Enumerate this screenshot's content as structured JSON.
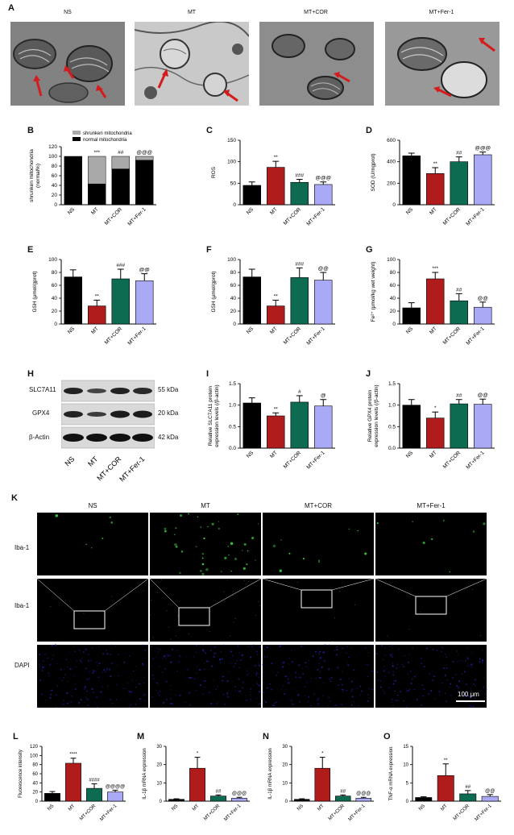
{
  "panel_letters": [
    "A",
    "B",
    "C",
    "D",
    "E",
    "F",
    "G",
    "H",
    "I",
    "J",
    "K",
    "L",
    "M",
    "N",
    "O"
  ],
  "em_labels": [
    "NS",
    "MT",
    "MT+COR",
    "MT+Fer-1"
  ],
  "groups": [
    "NS",
    "MT",
    "MT+COR",
    "MT+Fer-1"
  ],
  "colors": {
    "NS": "#000000",
    "MT": "#b01c1c",
    "MT+COR": "#0c6b50",
    "MT+Fer-1": "#a9a9f5",
    "shrunken": "#a9a9a9",
    "normal": "#000000",
    "iba": "#3ec33e",
    "dapi": "#2a2ad8"
  },
  "blot": {
    "proteins": [
      "SLC7A11",
      "GPX4",
      "β-Actin"
    ],
    "sizes": [
      "55 kDa",
      "20 kDa",
      "42 kDa"
    ],
    "lanes": [
      "NS",
      "MT",
      "MT+COR",
      "MT+Fer-1"
    ]
  },
  "fluor": {
    "columns": [
      "NS",
      "MT",
      "MT+COR",
      "MT+Fer-1"
    ],
    "rows": [
      "Iba-1",
      "Iba-1",
      "DAPI"
    ],
    "scale_bar": "100 μm"
  },
  "chart_data": [
    {
      "id": "B",
      "type": "bar",
      "stacked": true,
      "categories": [
        "NS",
        "MT",
        "MT+COR",
        "MT+Fer-1"
      ],
      "series": [
        {
          "name": "normal mitochondria",
          "values": [
            100,
            43,
            74,
            92
          ]
        },
        {
          "name": "shrunken mitochondria",
          "values": [
            0,
            57,
            26,
            8
          ]
        }
      ],
      "ylabel": "shrunken mitochondria (normal%)",
      "ylim": [
        0,
        120
      ],
      "yticks": [
        0,
        20,
        40,
        60,
        80,
        100,
        120
      ],
      "sig": [
        "",
        "***",
        "##",
        "@@@"
      ],
      "legend": "top"
    },
    {
      "id": "C",
      "type": "bar",
      "categories": [
        "NS",
        "MT",
        "MT+COR",
        "MT+Fer-1"
      ],
      "values": [
        45,
        87,
        52,
        47
      ],
      "errors": [
        8,
        14,
        7,
        6
      ],
      "ylabel": "ROS",
      "ylim": [
        0,
        150
      ],
      "yticks": [
        0,
        50,
        100,
        150
      ],
      "sig": [
        "",
        "**",
        "###",
        "@@@"
      ]
    },
    {
      "id": "D",
      "type": "bar",
      "categories": [
        "NS",
        "MT",
        "MT+COR",
        "MT+Fer-1"
      ],
      "values": [
        455,
        290,
        400,
        465
      ],
      "errors": [
        25,
        55,
        45,
        25
      ],
      "ylabel": "SOD (U/mgprot)",
      "ylim": [
        0,
        600
      ],
      "yticks": [
        0,
        200,
        400,
        600
      ],
      "sig": [
        "",
        "**",
        "##",
        "@@@"
      ]
    },
    {
      "id": "E",
      "type": "bar",
      "categories": [
        "NS",
        "MT",
        "MT+COR",
        "MT+Fer-1"
      ],
      "values": [
        73,
        28,
        70,
        67
      ],
      "errors": [
        11,
        9,
        15,
        11
      ],
      "ylabel": "GSH (μmol/gprot)",
      "ylim": [
        0,
        100
      ],
      "yticks": [
        0,
        20,
        40,
        60,
        80,
        100
      ],
      "sig": [
        "",
        "**",
        "###",
        "@@"
      ]
    },
    {
      "id": "F",
      "type": "bar",
      "categories": [
        "NS",
        "MT",
        "MT+COR",
        "MT+Fer-1"
      ],
      "values": [
        73,
        28,
        72,
        68
      ],
      "errors": [
        12,
        9,
        15,
        12
      ],
      "ylabel": "GSH (μmol/gprot)",
      "ylim": [
        0,
        100
      ],
      "yticks": [
        0,
        20,
        40,
        60,
        80,
        100
      ],
      "sig": [
        "",
        "**",
        "###",
        "@@"
      ]
    },
    {
      "id": "G",
      "type": "bar",
      "categories": [
        "NS",
        "MT",
        "MT+COR",
        "MT+Fer-1"
      ],
      "values": [
        25,
        70,
        36,
        26
      ],
      "errors": [
        8,
        10,
        11,
        8
      ],
      "ylabel": "Fe²⁺ (μmol/kg wet weight)",
      "ylim": [
        0,
        100
      ],
      "yticks": [
        0,
        20,
        40,
        60,
        80,
        100
      ],
      "sig": [
        "",
        "***",
        "##",
        "@@"
      ]
    },
    {
      "id": "I",
      "type": "bar",
      "categories": [
        "NS",
        "MT",
        "MT+COR",
        "MT+Fer-1"
      ],
      "values": [
        1.05,
        0.75,
        1.07,
        0.98
      ],
      "errors": [
        0.12,
        0.07,
        0.15,
        0.15
      ],
      "ylabel": "Relative SLC7A11 protein expression levels (/β-actin)",
      "ylim": [
        0,
        1.5
      ],
      "yticks": [
        0.0,
        0.5,
        1.0,
        1.5
      ],
      "sig": [
        "",
        "**",
        "#",
        "@"
      ]
    },
    {
      "id": "J",
      "type": "bar",
      "categories": [
        "NS",
        "MT",
        "MT+COR",
        "MT+Fer-1"
      ],
      "values": [
        1.0,
        0.7,
        1.03,
        1.02
      ],
      "errors": [
        0.13,
        0.14,
        0.1,
        0.12
      ],
      "ylabel": "Relative GPX4 protein expression levels (/β-actin)",
      "ylim": [
        0,
        1.5
      ],
      "yticks": [
        0.0,
        0.5,
        1.0,
        1.5
      ],
      "sig": [
        "",
        "*",
        "##",
        "@@"
      ]
    },
    {
      "id": "L",
      "type": "bar",
      "categories": [
        "NS",
        "MT",
        "MT+COR",
        "MT+Fer-1"
      ],
      "values": [
        17,
        83,
        28,
        20
      ],
      "errors": [
        4,
        11,
        10,
        4
      ],
      "ylabel": "Fluorescence intensity",
      "ylim": [
        0,
        120
      ],
      "yticks": [
        0,
        20,
        40,
        60,
        80,
        100,
        120
      ],
      "sig": [
        "",
        "****",
        "####",
        "@@@@"
      ]
    },
    {
      "id": "M",
      "type": "bar",
      "categories": [
        "NS",
        "MT",
        "MT+COR",
        "MT+Fer-1"
      ],
      "values": [
        1.0,
        18,
        2.8,
        1.6
      ],
      "errors": [
        0.3,
        6,
        0.6,
        0.5
      ],
      "ylabel": "IL-1β mRNA expression",
      "ylim": [
        0,
        30
      ],
      "yticks": [
        0,
        10,
        20,
        30
      ],
      "sig": [
        "",
        "*",
        "##",
        "@@@"
      ]
    },
    {
      "id": "N",
      "type": "bar",
      "categories": [
        "NS",
        "MT",
        "MT+COR",
        "MT+Fer-1"
      ],
      "values": [
        1.0,
        18,
        2.8,
        1.6
      ],
      "errors": [
        0.3,
        6,
        0.6,
        0.5
      ],
      "ylabel": "IL-1β mRNA expression",
      "ylim": [
        0,
        30
      ],
      "yticks": [
        0,
        10,
        20,
        30
      ],
      "sig": [
        "",
        "*",
        "##",
        "@@@"
      ]
    },
    {
      "id": "O",
      "type": "bar",
      "categories": [
        "NS",
        "MT",
        "MT+COR",
        "MT+Fer-1"
      ],
      "values": [
        1.0,
        7.0,
        2.0,
        1.3
      ],
      "errors": [
        0.2,
        3.2,
        0.9,
        0.5
      ],
      "ylabel": "TNF-α mRNA expression",
      "ylim": [
        0,
        15
      ],
      "yticks": [
        0,
        5,
        10,
        15
      ],
      "sig": [
        "",
        "**",
        "##",
        "@@"
      ]
    }
  ]
}
